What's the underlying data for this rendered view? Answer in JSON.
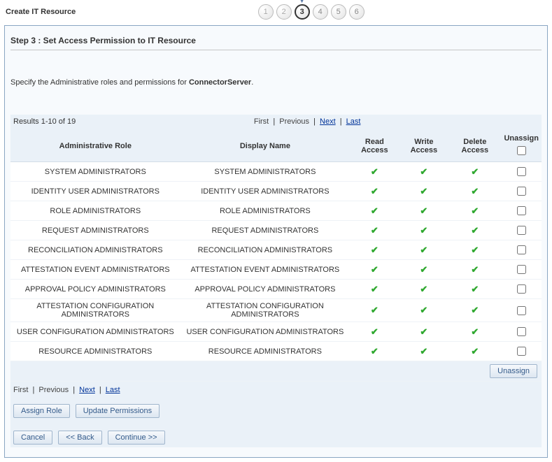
{
  "pageTitle": "Create IT Resource",
  "steps": [
    "1",
    "2",
    "3",
    "4",
    "5",
    "6"
  ],
  "activeStep": 3,
  "stepHeading": "Step 3 : Set Access Permission to IT Resource",
  "instruction_prefix": "Specify the Administrative roles and permissions for ",
  "instruction_bold": "ConnectorServer",
  "instruction_suffix": ".",
  "resultsText": "Results 1-10 of 19",
  "pager": {
    "first": "First",
    "previous": "Previous",
    "next": "Next",
    "last": "Last"
  },
  "columns": {
    "role": "Administrative Role",
    "display": "Display Name",
    "read": "Read Access",
    "write": "Write Access",
    "delete": "Delete Access",
    "unassign": "Unassign"
  },
  "rows": [
    {
      "role": "SYSTEM ADMINISTRATORS",
      "display": "SYSTEM ADMINISTRATORS",
      "r": true,
      "w": true,
      "d": true
    },
    {
      "role": "IDENTITY USER ADMINISTRATORS",
      "display": "IDENTITY USER ADMINISTRATORS",
      "r": true,
      "w": true,
      "d": true
    },
    {
      "role": "ROLE ADMINISTRATORS",
      "display": "ROLE ADMINISTRATORS",
      "r": true,
      "w": true,
      "d": true
    },
    {
      "role": "REQUEST ADMINISTRATORS",
      "display": "REQUEST ADMINISTRATORS",
      "r": true,
      "w": true,
      "d": true
    },
    {
      "role": "RECONCILIATION ADMINISTRATORS",
      "display": "RECONCILIATION ADMINISTRATORS",
      "r": true,
      "w": true,
      "d": true
    },
    {
      "role": "ATTESTATION EVENT ADMINISTRATORS",
      "display": "ATTESTATION EVENT ADMINISTRATORS",
      "r": true,
      "w": true,
      "d": true
    },
    {
      "role": "APPROVAL POLICY ADMINISTRATORS",
      "display": "APPROVAL POLICY ADMINISTRATORS",
      "r": true,
      "w": true,
      "d": true
    },
    {
      "role": "ATTESTATION CONFIGURATION ADMINISTRATORS",
      "display": "ATTESTATION CONFIGURATION ADMINISTRATORS",
      "r": true,
      "w": true,
      "d": true
    },
    {
      "role": "USER CONFIGURATION ADMINISTRATORS",
      "display": "USER CONFIGURATION ADMINISTRATORS",
      "r": true,
      "w": true,
      "d": true
    },
    {
      "role": "RESOURCE ADMINISTRATORS",
      "display": "RESOURCE ADMINISTRATORS",
      "r": true,
      "w": true,
      "d": true
    }
  ],
  "buttons": {
    "unassign": "Unassign",
    "assignRole": "Assign Role",
    "updatePermissions": "Update Permissions",
    "cancel": "Cancel",
    "back": "<<  Back",
    "continue": "Continue  >>"
  },
  "colors": {
    "panelBorder": "#8aa6c3",
    "panelBg": "#f7fafd",
    "headerBg": "#eaf1f8",
    "check": "#2fa82f",
    "link": "#003399"
  }
}
